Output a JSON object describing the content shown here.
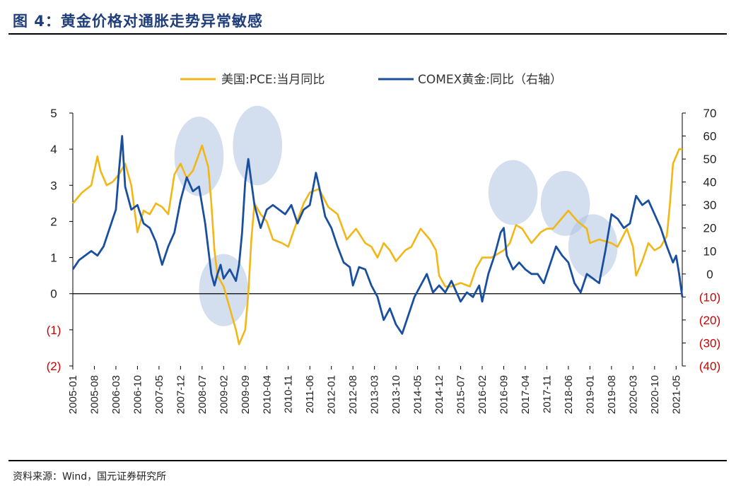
{
  "figure": {
    "title": "图 4：黄金价格对通胀走势异常敏感",
    "source": "资料来源：Wind，国元证券研究所"
  },
  "colors": {
    "pce": "#F2B716",
    "gold": "#1A4FA0",
    "negative_tick": "#CC0000",
    "tick": "#222222",
    "highlight": "#AFC3E2",
    "title": "#1F3E7C"
  },
  "chart_data": {
    "type": "line",
    "title": "",
    "x_start": "2005-01",
    "x_end": "2021-07",
    "x_tick_labels": [
      "2005-01",
      "2005-08",
      "2006-03",
      "2006-10",
      "2007-05",
      "2007-12",
      "2008-07",
      "2009-02",
      "2009-09",
      "2010-04",
      "2010-11",
      "2011-06",
      "2012-01",
      "2012-08",
      "2013-03",
      "2013-10",
      "2014-05",
      "2014-12",
      "2015-07",
      "2016-02",
      "2016-09",
      "2017-04",
      "2017-11",
      "2018-06",
      "2019-01",
      "2019-08",
      "2020-03",
      "2020-10",
      "2021-05"
    ],
    "y_left": {
      "range": [
        -2,
        5
      ],
      "tick_labels": [
        "5",
        "4",
        "3",
        "2",
        "1",
        "0",
        "(1)",
        "(2)"
      ],
      "tick_values": [
        5,
        4,
        3,
        2,
        1,
        0,
        -1,
        -2
      ]
    },
    "y_right": {
      "range": [
        -40,
        70
      ],
      "tick_labels": [
        "70",
        "60",
        "50",
        "40",
        "30",
        "20",
        "10",
        "0",
        "(10)",
        "(20)",
        "(30)",
        "(40)"
      ],
      "tick_values": [
        70,
        60,
        50,
        40,
        30,
        20,
        10,
        0,
        -10,
        -20,
        -30,
        -40
      ]
    },
    "legend": {
      "placement": "top"
    },
    "series": [
      {
        "name": "美国:PCE:当月同比",
        "axis": "left",
        "points": [
          [
            "2005-01",
            2.5
          ],
          [
            "2005-04",
            2.8
          ],
          [
            "2005-07",
            3.0
          ],
          [
            "2005-09",
            3.8
          ],
          [
            "2005-10",
            3.4
          ],
          [
            "2005-12",
            3.0
          ],
          [
            "2006-02",
            3.1
          ],
          [
            "2006-04",
            3.3
          ],
          [
            "2006-06",
            3.6
          ],
          [
            "2006-08",
            3.0
          ],
          [
            "2006-10",
            1.7
          ],
          [
            "2006-12",
            2.3
          ],
          [
            "2007-02",
            2.2
          ],
          [
            "2007-04",
            2.5
          ],
          [
            "2007-06",
            2.4
          ],
          [
            "2007-08",
            2.2
          ],
          [
            "2007-10",
            3.3
          ],
          [
            "2007-12",
            3.6
          ],
          [
            "2008-02",
            3.2
          ],
          [
            "2008-04",
            3.4
          ],
          [
            "2008-07",
            4.1
          ],
          [
            "2008-09",
            3.5
          ],
          [
            "2008-10",
            2.5
          ],
          [
            "2008-11",
            1.2
          ],
          [
            "2008-12",
            0.5
          ],
          [
            "2009-02",
            0.2
          ],
          [
            "2009-04",
            -0.4
          ],
          [
            "2009-06",
            -1.0
          ],
          [
            "2009-07",
            -1.4
          ],
          [
            "2009-09",
            -1.0
          ],
          [
            "2009-10",
            0.0
          ],
          [
            "2009-11",
            1.5
          ],
          [
            "2009-12",
            2.5
          ],
          [
            "2010-02",
            2.2
          ],
          [
            "2010-04",
            2.0
          ],
          [
            "2010-06",
            1.5
          ],
          [
            "2010-09",
            1.4
          ],
          [
            "2010-11",
            1.3
          ],
          [
            "2011-01",
            1.8
          ],
          [
            "2011-04",
            2.5
          ],
          [
            "2011-06",
            2.8
          ],
          [
            "2011-09",
            2.9
          ],
          [
            "2011-12",
            2.4
          ],
          [
            "2012-03",
            2.2
          ],
          [
            "2012-06",
            1.5
          ],
          [
            "2012-09",
            1.8
          ],
          [
            "2012-12",
            1.4
          ],
          [
            "2013-02",
            1.3
          ],
          [
            "2013-04",
            1.0
          ],
          [
            "2013-06",
            1.4
          ],
          [
            "2013-08",
            1.2
          ],
          [
            "2013-10",
            0.9
          ],
          [
            "2014-01",
            1.2
          ],
          [
            "2014-03",
            1.3
          ],
          [
            "2014-06",
            1.8
          ],
          [
            "2014-09",
            1.5
          ],
          [
            "2014-11",
            1.2
          ],
          [
            "2014-12",
            0.5
          ],
          [
            "2015-02",
            0.2
          ],
          [
            "2015-04",
            0.2
          ],
          [
            "2015-07",
            0.3
          ],
          [
            "2015-10",
            0.2
          ],
          [
            "2015-12",
            0.7
          ],
          [
            "2016-02",
            1.0
          ],
          [
            "2016-05",
            1.0
          ],
          [
            "2016-09",
            1.2
          ],
          [
            "2016-11",
            1.4
          ],
          [
            "2017-01",
            1.9
          ],
          [
            "2017-03",
            1.8
          ],
          [
            "2017-06",
            1.4
          ],
          [
            "2017-09",
            1.7
          ],
          [
            "2017-11",
            1.8
          ],
          [
            "2018-01",
            1.8
          ],
          [
            "2018-03",
            2.0
          ],
          [
            "2018-06",
            2.3
          ],
          [
            "2018-09",
            2.0
          ],
          [
            "2018-12",
            1.8
          ],
          [
            "2019-01",
            1.4
          ],
          [
            "2019-04",
            1.5
          ],
          [
            "2019-08",
            1.4
          ],
          [
            "2019-10",
            1.3
          ],
          [
            "2020-01",
            1.8
          ],
          [
            "2020-03",
            1.3
          ],
          [
            "2020-04",
            0.5
          ],
          [
            "2020-06",
            0.9
          ],
          [
            "2020-08",
            1.4
          ],
          [
            "2020-10",
            1.2
          ],
          [
            "2020-12",
            1.3
          ],
          [
            "2021-02",
            1.6
          ],
          [
            "2021-03",
            2.5
          ],
          [
            "2021-04",
            3.6
          ],
          [
            "2021-06",
            4.0
          ],
          [
            "2021-07",
            4.0
          ]
        ]
      },
      {
        "name": "COMEX黄金:同比（右轴）",
        "axis": "right",
        "points": [
          [
            "2005-01",
            2
          ],
          [
            "2005-03",
            6
          ],
          [
            "2005-05",
            8
          ],
          [
            "2005-07",
            10
          ],
          [
            "2005-09",
            8
          ],
          [
            "2005-11",
            12
          ],
          [
            "2006-01",
            20
          ],
          [
            "2006-03",
            28
          ],
          [
            "2006-04",
            45
          ],
          [
            "2006-05",
            60
          ],
          [
            "2006-06",
            38
          ],
          [
            "2006-08",
            28
          ],
          [
            "2006-10",
            30
          ],
          [
            "2006-12",
            22
          ],
          [
            "2007-02",
            20
          ],
          [
            "2007-04",
            14
          ],
          [
            "2007-06",
            4
          ],
          [
            "2007-08",
            12
          ],
          [
            "2007-10",
            18
          ],
          [
            "2007-12",
            32
          ],
          [
            "2008-02",
            42
          ],
          [
            "2008-04",
            36
          ],
          [
            "2008-06",
            38
          ],
          [
            "2008-08",
            22
          ],
          [
            "2008-10",
            0
          ],
          [
            "2008-11",
            -5
          ],
          [
            "2008-12",
            0
          ],
          [
            "2009-01",
            4
          ],
          [
            "2009-02",
            -2
          ],
          [
            "2009-04",
            2
          ],
          [
            "2009-06",
            -3
          ],
          [
            "2009-07",
            4
          ],
          [
            "2009-08",
            18
          ],
          [
            "2009-09",
            40
          ],
          [
            "2009-10",
            50
          ],
          [
            "2009-11",
            40
          ],
          [
            "2009-12",
            30
          ],
          [
            "2010-02",
            20
          ],
          [
            "2010-04",
            28
          ],
          [
            "2010-06",
            30
          ],
          [
            "2010-08",
            28
          ],
          [
            "2010-10",
            26
          ],
          [
            "2010-12",
            30
          ],
          [
            "2011-02",
            22
          ],
          [
            "2011-04",
            28
          ],
          [
            "2011-06",
            30
          ],
          [
            "2011-08",
            44
          ],
          [
            "2011-09",
            38
          ],
          [
            "2011-11",
            25
          ],
          [
            "2012-01",
            20
          ],
          [
            "2012-03",
            12
          ],
          [
            "2012-05",
            5
          ],
          [
            "2012-07",
            3
          ],
          [
            "2012-08",
            -5
          ],
          [
            "2012-10",
            3
          ],
          [
            "2012-12",
            2
          ],
          [
            "2013-02",
            -5
          ],
          [
            "2013-04",
            -10
          ],
          [
            "2013-06",
            -20
          ],
          [
            "2013-08",
            -15
          ],
          [
            "2013-10",
            -22
          ],
          [
            "2013-12",
            -26
          ],
          [
            "2014-02",
            -18
          ],
          [
            "2014-04",
            -10
          ],
          [
            "2014-06",
            -5
          ],
          [
            "2014-08",
            0
          ],
          [
            "2014-10",
            -8
          ],
          [
            "2014-12",
            -5
          ],
          [
            "2015-02",
            -8
          ],
          [
            "2015-04",
            -3
          ],
          [
            "2015-07",
            -12
          ],
          [
            "2015-09",
            -8
          ],
          [
            "2015-11",
            -10
          ],
          [
            "2016-01",
            -5
          ],
          [
            "2016-02",
            -12
          ],
          [
            "2016-04",
            0
          ],
          [
            "2016-06",
            8
          ],
          [
            "2016-08",
            18
          ],
          [
            "2016-09",
            20
          ],
          [
            "2016-10",
            8
          ],
          [
            "2016-12",
            2
          ],
          [
            "2017-02",
            5
          ],
          [
            "2017-04",
            2
          ],
          [
            "2017-06",
            0
          ],
          [
            "2017-08",
            0
          ],
          [
            "2017-10",
            -4
          ],
          [
            "2017-12",
            4
          ],
          [
            "2018-02",
            12
          ],
          [
            "2018-04",
            8
          ],
          [
            "2018-06",
            5
          ],
          [
            "2018-08",
            -4
          ],
          [
            "2018-10",
            -8
          ],
          [
            "2018-12",
            0
          ],
          [
            "2019-02",
            -2
          ],
          [
            "2019-04",
            -4
          ],
          [
            "2019-06",
            10
          ],
          [
            "2019-08",
            26
          ],
          [
            "2019-10",
            24
          ],
          [
            "2019-12",
            20
          ],
          [
            "2020-02",
            22
          ],
          [
            "2020-04",
            34
          ],
          [
            "2020-06",
            30
          ],
          [
            "2020-08",
            32
          ],
          [
            "2020-10",
            26
          ],
          [
            "2020-12",
            20
          ],
          [
            "2021-02",
            12
          ],
          [
            "2021-04",
            5
          ],
          [
            "2021-05",
            8
          ],
          [
            "2021-06",
            0
          ],
          [
            "2021-07",
            -10
          ]
        ]
      }
    ],
    "highlights": [
      {
        "center": [
          "2008-06",
          3.8
        ],
        "rx_months": 8,
        "ry_units": 1.1
      },
      {
        "center": [
          "2009-02",
          0.1
        ],
        "rx_months": 8,
        "ry_units": 1.0
      },
      {
        "center": [
          "2010-01",
          4.1
        ],
        "rx_months": 8,
        "ry_units": 1.1
      },
      {
        "center": [
          "2016-12",
          2.8
        ],
        "rx_months": 8,
        "ry_units": 0.9
      },
      {
        "center": [
          "2018-05",
          2.5
        ],
        "rx_months": 8,
        "ry_units": 0.9
      },
      {
        "center": [
          "2019-02",
          1.3
        ],
        "rx_months": 8,
        "ry_units": 0.9
      }
    ]
  }
}
